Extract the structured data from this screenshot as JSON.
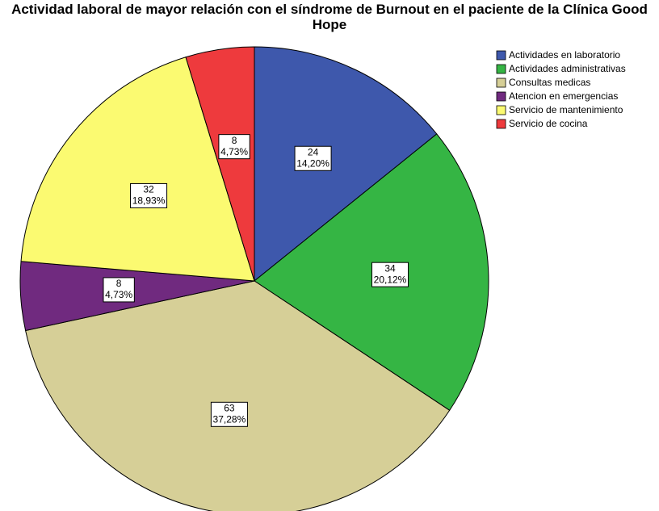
{
  "chart_data": {
    "type": "pie",
    "title": "Actividad laboral de mayor relación con el síndrome de Burnout en el paciente de la Clínica Good Hope",
    "categories": [
      "Actividades en laboratorio",
      "Actividades administrativas",
      "Consultas medicas",
      "Atencion en emergencias",
      "Servicio de mantenimiento",
      "Servicio de cocina"
    ],
    "values": [
      24,
      34,
      63,
      8,
      32,
      8
    ],
    "percentage_labels": [
      "14,20%",
      "20,12%",
      "37,28%",
      "4,73%",
      "18,93%",
      "4,73%"
    ],
    "colors": [
      "#3e58ac",
      "#35b544",
      "#d6cf97",
      "#702a7f",
      "#fbfa71",
      "#ee3a3d"
    ],
    "start_angle": 0,
    "direction": "clockwise",
    "legend": "right"
  }
}
